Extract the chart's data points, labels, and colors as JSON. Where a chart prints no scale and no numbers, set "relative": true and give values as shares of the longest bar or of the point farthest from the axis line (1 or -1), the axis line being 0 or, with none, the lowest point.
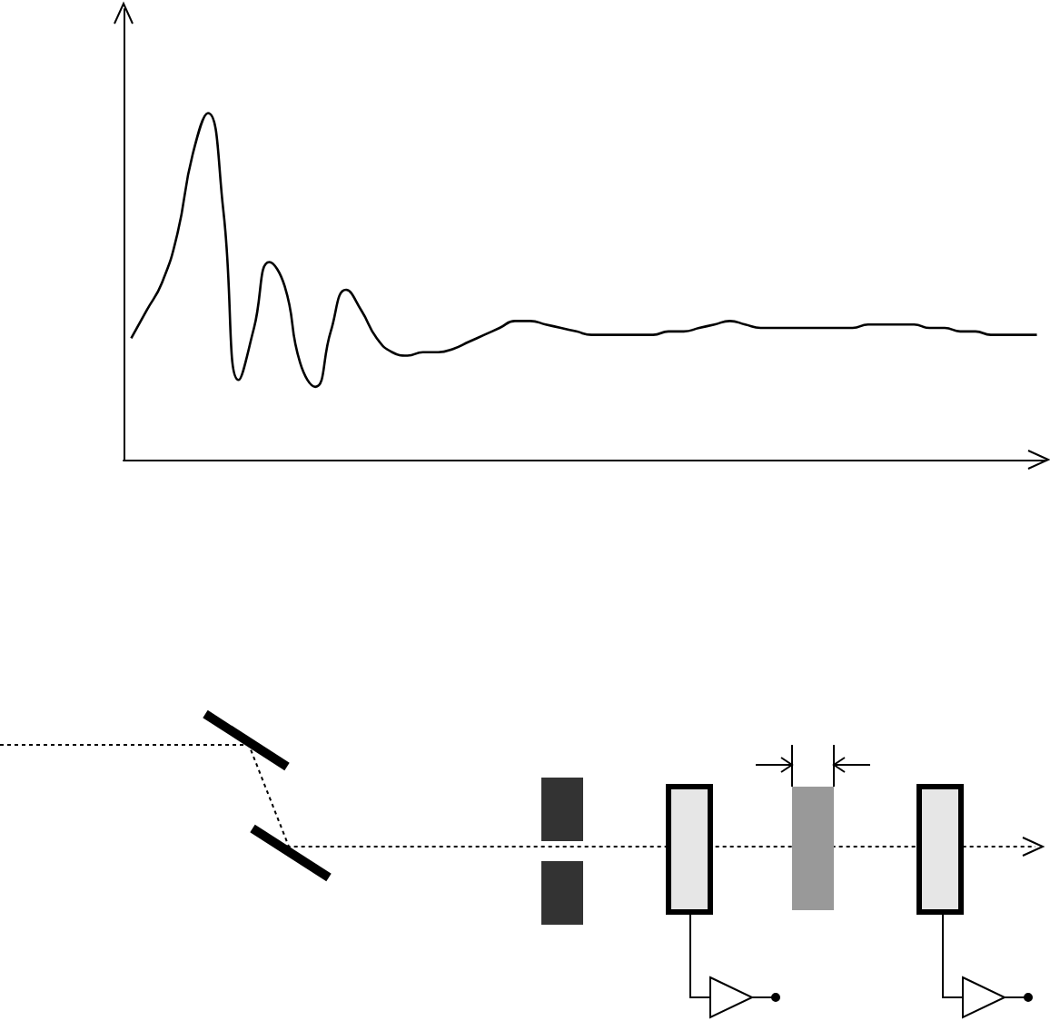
{
  "chart_data": {
    "type": "line",
    "relative": true,
    "line_style": "solid",
    "marker": "none",
    "grid": false,
    "categories": [
      null,
      null,
      null,
      null,
      null,
      null,
      null,
      null,
      null,
      null,
      null,
      null,
      null,
      null,
      null,
      null,
      null,
      null,
      null,
      null,
      null,
      null,
      null,
      null,
      null,
      null,
      null,
      null,
      null,
      null,
      null,
      null,
      null,
      null,
      null,
      null,
      null,
      null,
      null,
      null,
      null,
      null,
      null,
      null,
      null,
      null,
      null,
      null,
      null,
      null,
      null,
      null,
      null,
      null,
      null,
      null,
      null,
      null,
      null,
      null
    ],
    "series": [
      {
        "color": "#000000",
        "values": [
          0.35,
          0.43,
          0.51,
          0.65,
          0.88,
          1,
          0.72,
          0.23,
          0.38,
          0.57,
          0.5,
          0.28,
          0.21,
          0.37,
          0.49,
          0.43,
          0.35,
          0.31,
          0.3,
          0.31,
          0.31,
          0.32,
          0.34,
          0.36,
          0.38,
          0.4,
          0.4,
          0.39,
          0.38,
          0.37,
          0.36,
          0.36,
          0.36,
          0.36,
          0.36,
          0.37,
          0.37,
          0.38,
          0.39,
          0.4,
          0.39,
          0.38,
          0.38,
          0.38,
          0.38,
          0.38,
          0.38,
          0.38,
          0.39,
          0.39,
          0.39,
          0.39,
          0.38,
          0.38,
          0.37,
          0.37,
          0.36,
          0.36,
          0.36,
          0.36
        ]
      }
    ]
  }
}
